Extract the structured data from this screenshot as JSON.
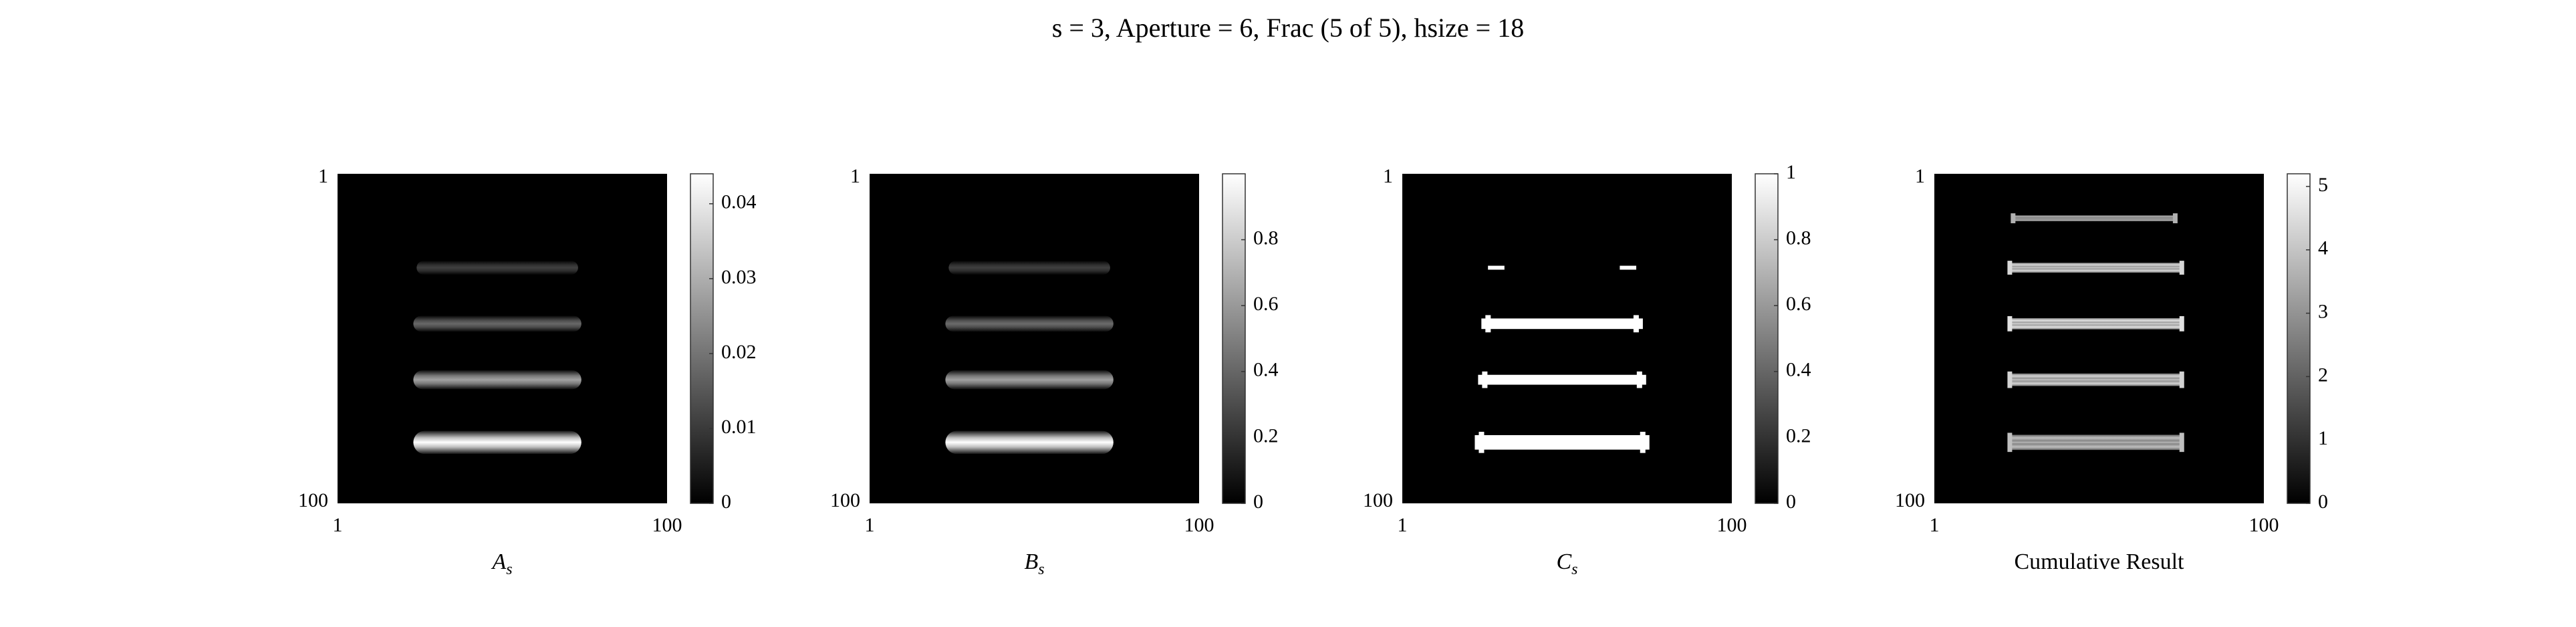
{
  "title": "s = 3, Aperture = 6, Frac (5 of 5), hsize = 18",
  "chart_data": [
    {
      "type": "heatmap",
      "xlabel": "A",
      "xlabel_sub": "s",
      "x_ticks": [
        "1",
        "100"
      ],
      "y_ticks": [
        "1",
        "100"
      ],
      "xlim": [
        1,
        100
      ],
      "ylim": [
        1,
        100
      ],
      "colormap": "gray",
      "colorbar": {
        "min": 0,
        "max": 0.044,
        "ticks": [
          0,
          0.01,
          0.02,
          0.03,
          0.04
        ],
        "tick_labels": [
          "0",
          "0.01",
          "0.02",
          "0.03",
          "0.04"
        ]
      },
      "bars": [
        {
          "row": 29,
          "x_start": 25,
          "x_end": 73,
          "peak": 0.011,
          "thickness": 2.6,
          "style": "soft"
        },
        {
          "row": 46,
          "x_start": 24,
          "x_end": 74,
          "peak": 0.018,
          "thickness": 3.0,
          "style": "soft"
        },
        {
          "row": 63,
          "x_start": 24,
          "x_end": 74,
          "peak": 0.028,
          "thickness": 3.6,
          "style": "soft"
        },
        {
          "row": 82,
          "x_start": 24,
          "x_end": 74,
          "peak": 0.044,
          "thickness": 4.4,
          "style": "soft"
        }
      ]
    },
    {
      "type": "heatmap",
      "xlabel": "B",
      "xlabel_sub": "s",
      "x_ticks": [
        "1",
        "100"
      ],
      "y_ticks": [
        "1",
        "100"
      ],
      "xlim": [
        1,
        100
      ],
      "ylim": [
        1,
        100
      ],
      "colormap": "gray",
      "colorbar": {
        "min": 0,
        "max": 1.0,
        "ticks": [
          0,
          0.2,
          0.4,
          0.6,
          0.8
        ],
        "tick_labels": [
          "0",
          "0.2",
          "0.4",
          "0.6",
          "0.8"
        ]
      },
      "bars": [
        {
          "row": 29,
          "x_start": 25,
          "x_end": 73,
          "peak": 0.25,
          "thickness": 2.6,
          "style": "soft"
        },
        {
          "row": 46,
          "x_start": 24,
          "x_end": 74,
          "peak": 0.42,
          "thickness": 3.0,
          "style": "soft"
        },
        {
          "row": 63,
          "x_start": 24,
          "x_end": 74,
          "peak": 0.63,
          "thickness": 3.6,
          "style": "soft"
        },
        {
          "row": 82,
          "x_start": 24,
          "x_end": 74,
          "peak": 1.0,
          "thickness": 4.4,
          "style": "soft"
        }
      ]
    },
    {
      "type": "heatmap",
      "xlabel": "C",
      "xlabel_sub": "s",
      "x_ticks": [
        "1",
        "100"
      ],
      "y_ticks": [
        "1",
        "100"
      ],
      "xlim": [
        1,
        100
      ],
      "ylim": [
        1,
        100
      ],
      "colormap": "gray",
      "colorbar": {
        "min": 0,
        "max": 1.0,
        "ticks": [
          0,
          0.2,
          0.4,
          0.6,
          0.8,
          1
        ],
        "tick_labels": [
          "0",
          "0.2",
          "0.4",
          "0.6",
          "0.8",
          "1"
        ]
      },
      "bars": [
        {
          "row": 29,
          "x_start": 27,
          "x_end": 31,
          "peak": 1,
          "thickness": 1.2,
          "style": "binary"
        },
        {
          "row": 29,
          "x_start": 67,
          "x_end": 71,
          "peak": 1,
          "thickness": 1.2,
          "style": "binary"
        },
        {
          "row": 46,
          "x_start": 25,
          "x_end": 73,
          "peak": 1,
          "thickness": 3.2,
          "style": "binary"
        },
        {
          "row": 63,
          "x_start": 24,
          "x_end": 74,
          "peak": 1,
          "thickness": 3.0,
          "style": "binary"
        },
        {
          "row": 82,
          "x_start": 23,
          "x_end": 75,
          "peak": 1,
          "thickness": 4.4,
          "style": "binary"
        }
      ]
    },
    {
      "type": "heatmap",
      "xlabel": "Cumulative Result",
      "xlabel_sub": "",
      "x_ticks": [
        "1",
        "100"
      ],
      "y_ticks": [
        "1",
        "100"
      ],
      "xlim": [
        1,
        100
      ],
      "ylim": [
        1,
        100
      ],
      "colormap": "gray",
      "colorbar": {
        "min": 0,
        "max": 5.2,
        "ticks": [
          0,
          1,
          2,
          3,
          4,
          5
        ],
        "tick_labels": [
          "0",
          "1",
          "2",
          "3",
          "4",
          "5"
        ]
      },
      "bars": [
        {
          "row": 14,
          "x_start": 25,
          "x_end": 73,
          "peak": 3.6,
          "thickness": 1.8,
          "style": "banded"
        },
        {
          "row": 29,
          "x_start": 24,
          "x_end": 75,
          "peak": 4.4,
          "thickness": 3.0,
          "style": "banded"
        },
        {
          "row": 46,
          "x_start": 24,
          "x_end": 75,
          "peak": 4.6,
          "thickness": 3.4,
          "style": "banded"
        },
        {
          "row": 63,
          "x_start": 24,
          "x_end": 75,
          "peak": 4.3,
          "thickness": 3.8,
          "style": "banded"
        },
        {
          "row": 82,
          "x_start": 24,
          "x_end": 75,
          "peak": 3.9,
          "thickness": 4.6,
          "style": "banded"
        }
      ]
    }
  ]
}
